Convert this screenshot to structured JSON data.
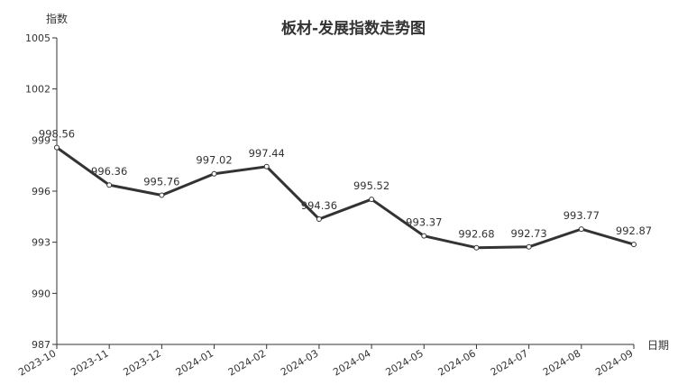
{
  "chart_data": {
    "type": "line",
    "title": "板材-发展指数走势图",
    "xlabel": "日期",
    "ylabel": "指数",
    "categories": [
      "2023-10",
      "2023-11",
      "2023-12",
      "2024-01",
      "2024-02",
      "2024-03",
      "2024-04",
      "2024-05",
      "2024-06",
      "2024-07",
      "2024-08",
      "2024-09"
    ],
    "values": [
      998.56,
      996.36,
      995.76,
      997.02,
      997.44,
      994.36,
      995.52,
      993.37,
      992.68,
      992.73,
      993.77,
      992.87
    ],
    "data_labels": [
      "998.56",
      "996.36",
      "995.76",
      "997.02",
      "997.44",
      "994.36",
      "995.52",
      "993.37",
      "992.68",
      "992.73",
      "993.77",
      "992.87"
    ],
    "yticks": [
      987,
      990,
      993,
      996,
      999,
      1002,
      1005
    ],
    "ylim": [
      987,
      1005
    ],
    "grid": false,
    "legend": "none",
    "line_color": "#333333"
  }
}
